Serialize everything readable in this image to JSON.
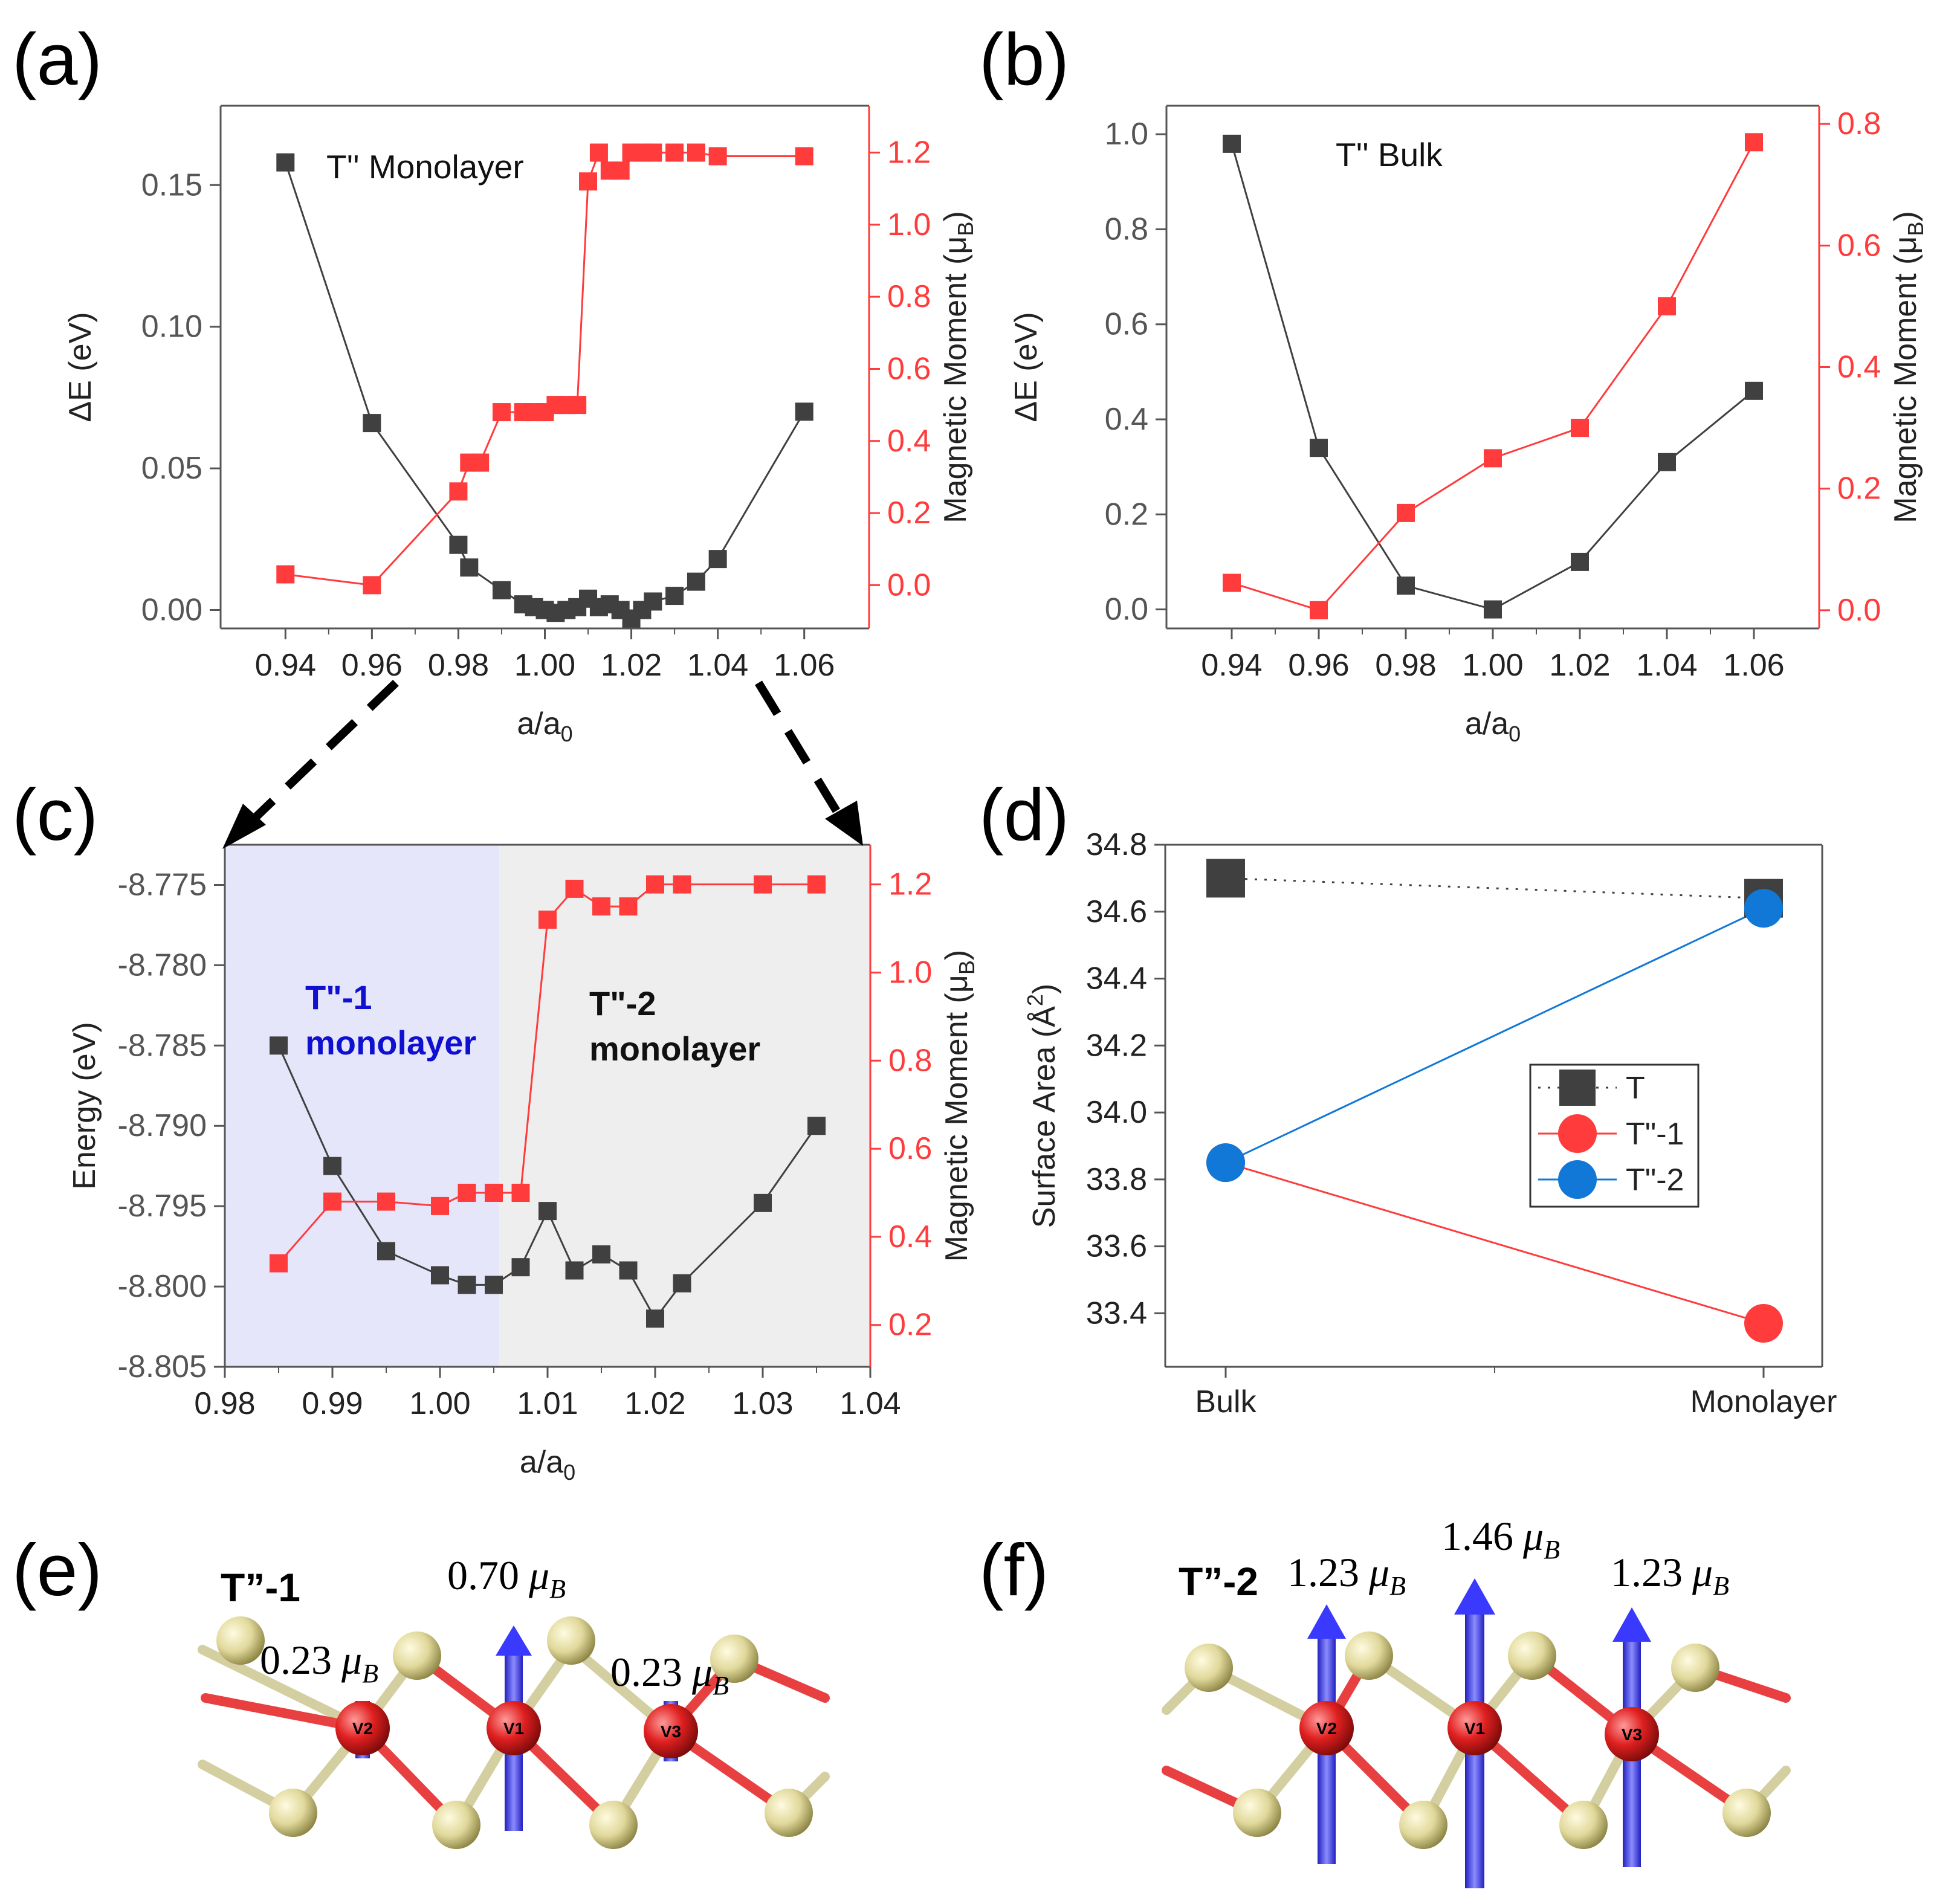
{
  "colors": {
    "black_series": "#404040",
    "red_series": "#ff3b3b",
    "blue_series": "#1178d8",
    "region1_bg": "#e6e6fb",
    "region2_bg": "#eeeeee",
    "arrow_blue": "#4a4aff",
    "atom_yellow": "#d8d08a",
    "atom_red": "#e02020"
  },
  "panel_labels": [
    "(a)",
    "(b)",
    "(c)",
    "(d)",
    "(e)",
    "(f)"
  ],
  "chart_data": [
    {
      "panel": "(a)",
      "type": "line",
      "annotation": "T'' Monolayer",
      "xlabel": "a/a",
      "xlabel_sub": "0",
      "ylabel": "ΔE (eV)",
      "y2label": "Magnetic Moment (μ",
      "y2label_sub": "B",
      "y2label_close": ")",
      "xlim": [
        0.925,
        1.075
      ],
      "ylim": [
        -0.0065,
        0.178
      ],
      "y2lim": [
        -0.12,
        1.33
      ],
      "xticks": [
        0.94,
        0.96,
        0.98,
        1.0,
        1.02,
        1.04,
        1.06
      ],
      "xtick_labels": [
        "0.94",
        "0.96",
        "0.98",
        "1.00",
        "1.02",
        "1.04",
        "1.06"
      ],
      "yticks": [
        0.0,
        0.05,
        0.1,
        0.15
      ],
      "ytick_labels": [
        "0.00",
        "0.05",
        "0.10",
        "0.15"
      ],
      "y2ticks": [
        0.0,
        0.2,
        0.4,
        0.6,
        0.8,
        1.0,
        1.2
      ],
      "y2tick_labels": [
        "0.0",
        "0.2",
        "0.4",
        "0.6",
        "0.8",
        "1.0",
        "1.2"
      ],
      "series": [
        {
          "name": "ΔE",
          "axis": "left",
          "color": "#404040",
          "x": [
            0.94,
            0.96,
            0.98,
            0.9825,
            0.99,
            0.995,
            0.9975,
            1.0,
            1.0025,
            1.005,
            1.0075,
            1.01,
            1.0125,
            1.015,
            1.0175,
            1.02,
            1.0225,
            1.025,
            1.03,
            1.035,
            1.04,
            1.06
          ],
          "y": [
            0.158,
            0.066,
            0.023,
            0.015,
            0.007,
            0.002,
            0.001,
            0.0,
            -0.001,
            0.0,
            0.001,
            0.004,
            0.001,
            0.002,
            0.0,
            -0.003,
            0.0,
            0.003,
            0.005,
            0.01,
            0.018,
            0.07
          ]
        },
        {
          "name": "Magnetic Moment",
          "axis": "right",
          "color": "#ff3b3b",
          "x": [
            0.94,
            0.96,
            0.98,
            0.9825,
            0.985,
            0.99,
            0.995,
            0.9975,
            1.0,
            1.0025,
            1.005,
            1.0075,
            1.01,
            1.0125,
            1.015,
            1.0175,
            1.02,
            1.0225,
            1.025,
            1.03,
            1.035,
            1.04,
            1.06
          ],
          "y": [
            0.03,
            0.0,
            0.26,
            0.34,
            0.34,
            0.48,
            0.48,
            0.48,
            0.48,
            0.5,
            0.5,
            0.5,
            1.12,
            1.2,
            1.15,
            1.15,
            1.2,
            1.2,
            1.2,
            1.2,
            1.2,
            1.19,
            1.19
          ]
        }
      ]
    },
    {
      "panel": "(b)",
      "type": "line",
      "annotation": "T'' Bulk",
      "xlabel": "a/a",
      "xlabel_sub": "0",
      "ylabel": "ΔE (eV)",
      "y2label": "Magnetic Moment (μ",
      "y2label_sub": "B",
      "y2label_close": ")",
      "xlim": [
        0.925,
        1.075
      ],
      "ylim": [
        -0.04,
        1.06
      ],
      "y2lim": [
        -0.03,
        0.83
      ],
      "xticks": [
        0.94,
        0.96,
        0.98,
        1.0,
        1.02,
        1.04,
        1.06
      ],
      "xtick_labels": [
        "0.94",
        "0.96",
        "0.98",
        "1.00",
        "1.02",
        "1.04",
        "1.06"
      ],
      "yticks": [
        0.0,
        0.2,
        0.4,
        0.6,
        0.8,
        1.0
      ],
      "ytick_labels": [
        "0.0",
        "0.2",
        "0.4",
        "0.6",
        "0.8",
        "1.0"
      ],
      "y2ticks": [
        0.0,
        0.2,
        0.4,
        0.6,
        0.8
      ],
      "y2tick_labels": [
        "0.0",
        "0.2",
        "0.4",
        "0.6",
        "0.8"
      ],
      "series": [
        {
          "name": "ΔE",
          "axis": "left",
          "color": "#404040",
          "x": [
            0.94,
            0.96,
            0.98,
            1.0,
            1.02,
            1.04,
            1.06
          ],
          "y": [
            0.98,
            0.34,
            0.05,
            0.0,
            0.1,
            0.31,
            0.46
          ]
        },
        {
          "name": "Magnetic Moment",
          "axis": "right",
          "color": "#ff3b3b",
          "x": [
            0.94,
            0.96,
            0.98,
            1.0,
            1.02,
            1.04,
            1.06
          ],
          "y": [
            0.045,
            0.0,
            0.16,
            0.25,
            0.3,
            0.5,
            0.77
          ]
        }
      ]
    },
    {
      "panel": "(c)",
      "type": "line",
      "xlabel": "a/a",
      "xlabel_sub": "0",
      "ylabel": "Energy (eV)",
      "y2label": "Magnetic Moment (μ",
      "y2label_sub": "B",
      "y2label_close": ")",
      "region1_label": [
        "T\"-1",
        "monolayer"
      ],
      "region2_label": [
        "T\"-2",
        "monolayer"
      ],
      "region_split": 1.0055,
      "xlim": [
        0.98,
        1.04
      ],
      "ylim": [
        -8.805,
        -8.7725
      ],
      "y2lim": [
        0.105,
        1.29
      ],
      "xticks": [
        0.98,
        0.99,
        1.0,
        1.01,
        1.02,
        1.03,
        1.04
      ],
      "xtick_labels": [
        "0.98",
        "0.99",
        "1.00",
        "1.01",
        "1.02",
        "1.03",
        "1.04"
      ],
      "yticks": [
        -8.775,
        -8.78,
        -8.785,
        -8.79,
        -8.795,
        -8.8,
        -8.805
      ],
      "ytick_labels": [
        "-8.775",
        "-8.780",
        "-8.785",
        "-8.790",
        "-8.795",
        "-8.800",
        "-8.805"
      ],
      "y2ticks": [
        0.2,
        0.4,
        0.6,
        0.8,
        1.0,
        1.2
      ],
      "y2tick_labels": [
        "0.2",
        "0.4",
        "0.6",
        "0.8",
        "1.0",
        "1.2"
      ],
      "series": [
        {
          "name": "Energy",
          "axis": "left",
          "color": "#404040",
          "x": [
            0.985,
            0.99,
            0.995,
            1.0,
            1.0025,
            1.005,
            1.0075,
            1.01,
            1.0125,
            1.015,
            1.0175,
            1.02,
            1.0225,
            1.03,
            1.035
          ],
          "y": [
            -8.785,
            -8.7925,
            -8.7978,
            -8.7993,
            -8.7999,
            -8.7999,
            -8.7988,
            -8.7953,
            -8.799,
            -8.798,
            -8.799,
            -8.802,
            -8.7998,
            -8.7948,
            -8.79
          ]
        },
        {
          "name": "Magnetic Moment",
          "axis": "right",
          "color": "#ff3b3b",
          "x": [
            0.985,
            0.99,
            0.995,
            1.0,
            1.0025,
            1.005,
            1.0075,
            1.01,
            1.0125,
            1.015,
            1.0175,
            1.02,
            1.0225,
            1.03,
            1.035
          ],
          "y": [
            0.34,
            0.48,
            0.48,
            0.47,
            0.5,
            0.5,
            0.5,
            1.12,
            1.19,
            1.15,
            1.15,
            1.2,
            1.2,
            1.2,
            1.2
          ]
        }
      ]
    },
    {
      "panel": "(d)",
      "type": "line",
      "xlabel": "",
      "ylabel": "Surface Area (Å",
      "ylabel_sup": "2",
      "ylabel_close": ")",
      "categories": [
        "Bulk",
        "Monolayer"
      ],
      "ylim": [
        33.24,
        34.8
      ],
      "yticks": [
        33.4,
        33.6,
        33.8,
        34.0,
        34.2,
        34.4,
        34.6,
        34.8
      ],
      "ytick_labels": [
        "33.4",
        "33.6",
        "33.8",
        "34.0",
        "34.2",
        "34.4",
        "34.6",
        "34.8"
      ],
      "legend": {
        "placement": "middle-right",
        "entries": [
          "T",
          "T\"-1",
          "T\"-2"
        ]
      },
      "series": [
        {
          "name": "T",
          "color": "#404040",
          "marker": "square",
          "line": "dotted",
          "values": [
            34.7,
            34.64
          ]
        },
        {
          "name": "T\"-1",
          "color": "#ff3b3b",
          "marker": "circle",
          "line": "solid",
          "values": [
            33.85,
            33.37
          ]
        },
        {
          "name": "T\"-2",
          "color": "#1178d8",
          "marker": "circle",
          "line": "solid",
          "values": [
            33.85,
            34.61
          ]
        }
      ]
    }
  ],
  "structures": {
    "e": {
      "title": "T”-1",
      "atoms": [
        "V2",
        "V1",
        "V3"
      ],
      "moments": [
        {
          "atom": "V2",
          "value": "0.23",
          "unit": "μ",
          "unit_sub": "B"
        },
        {
          "atom": "V1",
          "value": "0.70",
          "unit": "μ",
          "unit_sub": "B"
        },
        {
          "atom": "V3",
          "value": "0.23",
          "unit": "μ",
          "unit_sub": "B"
        }
      ],
      "moment_values": [
        0.23,
        0.7,
        0.23
      ]
    },
    "f": {
      "title": "T”-2",
      "atoms": [
        "V2",
        "V1",
        "V3"
      ],
      "moments": [
        {
          "atom": "V2",
          "value": "1.23",
          "unit": "μ",
          "unit_sub": "B"
        },
        {
          "atom": "V1",
          "value": "1.46",
          "unit": "μ",
          "unit_sub": "B"
        },
        {
          "atom": "V3",
          "value": "1.23",
          "unit": "μ",
          "unit_sub": "B"
        }
      ],
      "moment_values": [
        1.23,
        1.46,
        1.23
      ]
    }
  }
}
